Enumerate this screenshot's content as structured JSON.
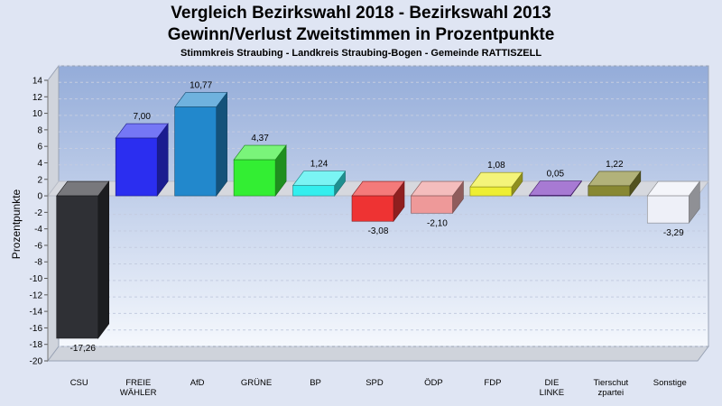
{
  "title": "Vergleich Bezirkswahl 2018 - Bezirkswahl 2013",
  "subtitle": "Gewinn/Verlust Zweitstimmen in Prozentpunkte",
  "subsubtitle": "Stimmkreis Straubing - Landkreis Straubing-Bogen - Gemeinde RATTISZELL",
  "chart_data": {
    "type": "bar",
    "title": "Vergleich Bezirkswahl 2018 - Bezirkswahl 2013",
    "xlabel": "",
    "ylabel": "Prozentpunkte",
    "ylim": [
      -20,
      14
    ],
    "yticks": [
      "14",
      "12",
      "10",
      "8",
      "6",
      "4",
      "2",
      "0",
      "-2",
      "-4",
      "-6",
      "-8",
      "-10",
      "-12",
      "-14",
      "-16",
      "-18",
      "-20"
    ],
    "grid": true,
    "bars": [
      {
        "name": "csu",
        "label": [
          "CSU"
        ],
        "value": -17.26,
        "value_label": "-17,26",
        "color": "#2f3035"
      },
      {
        "name": "freie-waehler",
        "label": [
          "FREIE",
          "WÄHLER"
        ],
        "value": 7.0,
        "value_label": "7,00",
        "color": "#2b2ef0"
      },
      {
        "name": "afd",
        "label": [
          "AfD"
        ],
        "value": 10.77,
        "value_label": "10,77",
        "color": "#2288cc"
      },
      {
        "name": "gruene",
        "label": [
          "GRÜNE"
        ],
        "value": 4.37,
        "value_label": "4,37",
        "color": "#33ee33"
      },
      {
        "name": "bp",
        "label": [
          "BP"
        ],
        "value": 1.24,
        "value_label": "1,24",
        "color": "#33eeee"
      },
      {
        "name": "spd",
        "label": [
          "SPD"
        ],
        "value": -3.08,
        "value_label": "-3,08",
        "color": "#ee3333"
      },
      {
        "name": "oedp",
        "label": [
          "ÖDP"
        ],
        "value": -2.1,
        "value_label": "-2,10",
        "color": "#ee9999"
      },
      {
        "name": "fdp",
        "label": [
          "FDP"
        ],
        "value": 1.08,
        "value_label": "1,08",
        "color": "#eeee33"
      },
      {
        "name": "die-linke",
        "label": [
          "DIE",
          "LINKE"
        ],
        "value": 0.05,
        "value_label": "0,05",
        "color": "#7733bb"
      },
      {
        "name": "tierschutzpartei",
        "label": [
          "Tierschut",
          "zpartei"
        ],
        "value": 1.22,
        "value_label": "1,22",
        "color": "#888833"
      },
      {
        "name": "sonstige",
        "label": [
          "Sonstige"
        ],
        "value": -3.29,
        "value_label": "-3,29",
        "color": "#eef0f8"
      }
    ]
  }
}
